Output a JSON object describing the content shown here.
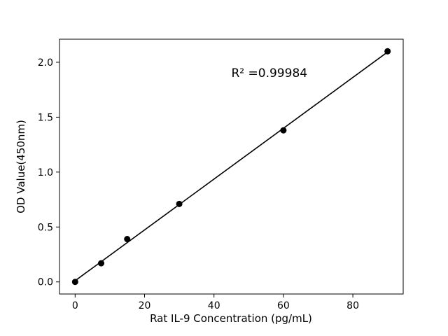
{
  "chart": {
    "xlabel": "Rat IL-9 Concentration (pg/mL)",
    "ylabel": "OD Value(450nm)",
    "annotation": "R² =0.99984"
  },
  "chart_data": {
    "type": "scatter",
    "title": "",
    "xlabel": "Rat IL-9 Concentration (pg/mL)",
    "ylabel": "OD Value(450nm)",
    "x": [
      0,
      7.5,
      15,
      30,
      60,
      90
    ],
    "y": [
      0.0,
      0.17,
      0.39,
      0.71,
      1.38,
      2.1
    ],
    "fit_line": true,
    "annotation": {
      "text": "R² =0.99984",
      "x": 45,
      "y": 1.9
    },
    "xlim": [
      -4.5,
      94.5
    ],
    "ylim": [
      -0.11,
      2.21
    ],
    "xticks": [
      0,
      20,
      40,
      60,
      80
    ],
    "yticks": [
      0.0,
      0.5,
      1.0,
      1.5,
      2.0
    ],
    "grid": false,
    "legend": false,
    "marker_color": "#000000",
    "line_color": "#000000",
    "background_color": "#ffffff"
  }
}
